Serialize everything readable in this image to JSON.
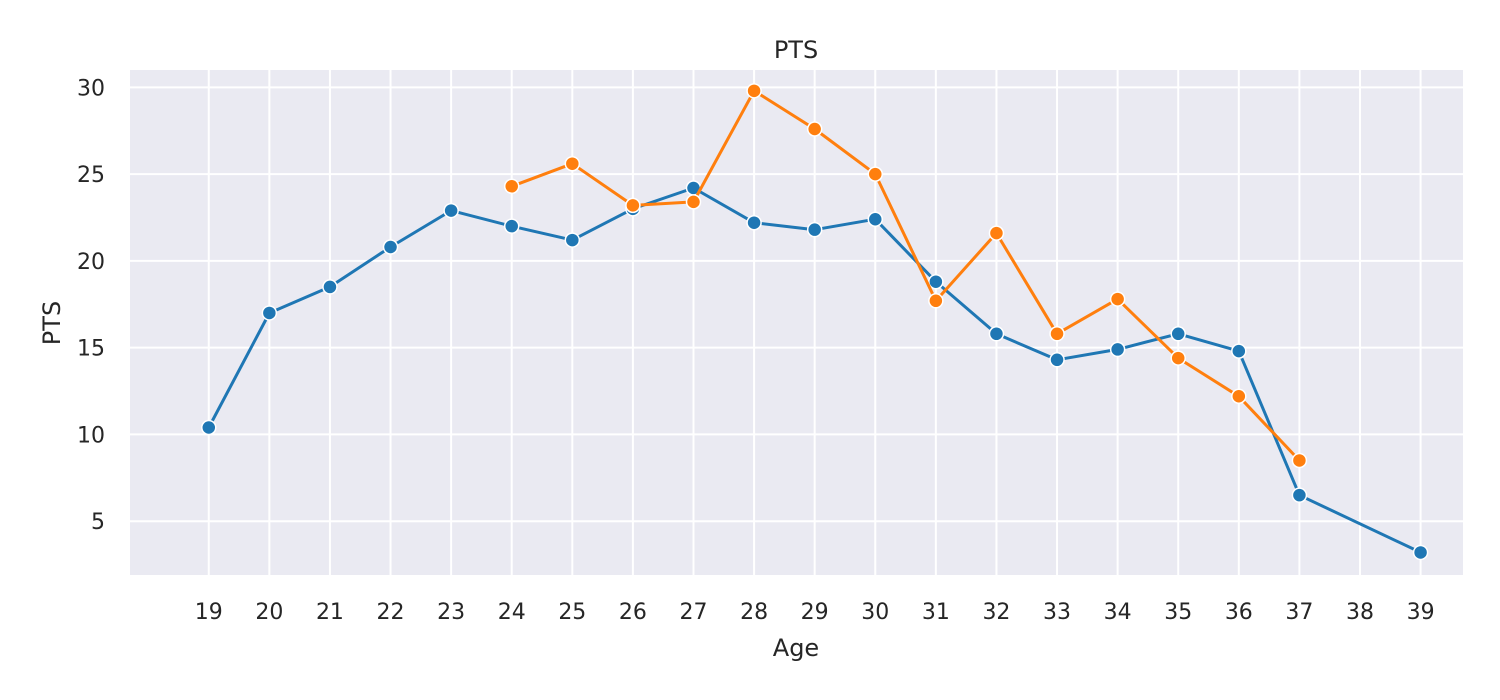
{
  "chart_data": {
    "type": "line",
    "title": "PTS",
    "xlabel": "Age",
    "ylabel": "PTS",
    "x_ticks": [
      19,
      20,
      21,
      22,
      23,
      24,
      25,
      26,
      27,
      28,
      29,
      30,
      31,
      32,
      33,
      34,
      35,
      36,
      37,
      38,
      39
    ],
    "y_ticks": [
      5,
      10,
      15,
      20,
      25,
      30
    ],
    "xlim": [
      17.7,
      39.7
    ],
    "ylim": [
      1.9,
      31.0
    ],
    "grid": true,
    "series": [
      {
        "color": "#1f77b4",
        "points": [
          {
            "x": 19,
            "y": 10.4
          },
          {
            "x": 20,
            "y": 17.0
          },
          {
            "x": 21,
            "y": 18.5
          },
          {
            "x": 22,
            "y": 20.8
          },
          {
            "x": 23,
            "y": 22.9
          },
          {
            "x": 24,
            "y": 22.0
          },
          {
            "x": 25,
            "y": 21.2
          },
          {
            "x": 26,
            "y": 23.0
          },
          {
            "x": 27,
            "y": 24.2
          },
          {
            "x": 28,
            "y": 22.2
          },
          {
            "x": 29,
            "y": 21.8
          },
          {
            "x": 30,
            "y": 22.4
          },
          {
            "x": 31,
            "y": 18.8
          },
          {
            "x": 32,
            "y": 15.8
          },
          {
            "x": 33,
            "y": 14.3
          },
          {
            "x": 34,
            "y": 14.9
          },
          {
            "x": 35,
            "y": 15.8
          },
          {
            "x": 36,
            "y": 14.8
          },
          {
            "x": 37,
            "y": 6.5
          },
          {
            "x": 39,
            "y": 3.2
          }
        ]
      },
      {
        "color": "#ff7f0e",
        "points": [
          {
            "x": 24,
            "y": 24.3
          },
          {
            "x": 25,
            "y": 25.6
          },
          {
            "x": 26,
            "y": 23.2
          },
          {
            "x": 27,
            "y": 23.4
          },
          {
            "x": 28,
            "y": 29.8
          },
          {
            "x": 29,
            "y": 27.6
          },
          {
            "x": 30,
            "y": 25.0
          },
          {
            "x": 31,
            "y": 17.7
          },
          {
            "x": 32,
            "y": 21.6
          },
          {
            "x": 33,
            "y": 15.8
          },
          {
            "x": 34,
            "y": 17.8
          },
          {
            "x": 35,
            "y": 14.4
          },
          {
            "x": 36,
            "y": 12.2
          },
          {
            "x": 37,
            "y": 8.5
          }
        ]
      }
    ]
  }
}
